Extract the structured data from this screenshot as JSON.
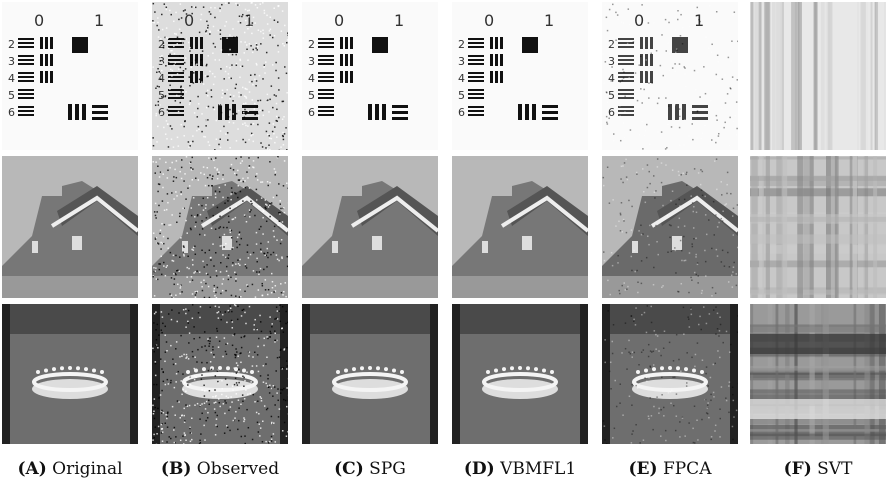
{
  "panels": [
    {
      "label": "(A)",
      "name": "Original"
    },
    {
      "label": "(B)",
      "name": "Observed"
    },
    {
      "label": "(C)",
      "name": "SPG"
    },
    {
      "label": "(D)",
      "name": "VBMFL1"
    },
    {
      "label": "(E)",
      "name": "FPCA"
    },
    {
      "label": "(F)",
      "name": "SVT"
    }
  ],
  "pattern": {
    "group_labels": [
      "0",
      "1"
    ],
    "row_labels": [
      "2",
      "3",
      "4",
      "5",
      "6"
    ]
  }
}
